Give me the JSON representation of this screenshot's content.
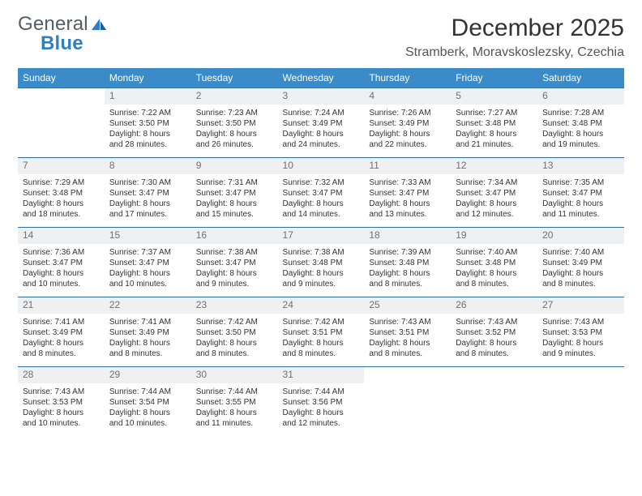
{
  "logo": {
    "text_general": "General",
    "text_blue": "Blue"
  },
  "title": "December 2025",
  "location": "Stramberk, Moravskoslezsky, Czechia",
  "colors": {
    "header_bg": "#3b8bc8",
    "header_text": "#ffffff",
    "daynum_bg": "#eef0f1",
    "daynum_text": "#707070",
    "cell_border": "#2f6fa3",
    "logo_gray": "#555d66",
    "logo_blue": "#2f7fc1"
  },
  "day_headers": [
    "Sunday",
    "Monday",
    "Tuesday",
    "Wednesday",
    "Thursday",
    "Friday",
    "Saturday"
  ],
  "weeks": [
    [
      {
        "n": "",
        "lines": []
      },
      {
        "n": "1",
        "lines": [
          "Sunrise: 7:22 AM",
          "Sunset: 3:50 PM",
          "Daylight: 8 hours",
          "and 28 minutes."
        ]
      },
      {
        "n": "2",
        "lines": [
          "Sunrise: 7:23 AM",
          "Sunset: 3:50 PM",
          "Daylight: 8 hours",
          "and 26 minutes."
        ]
      },
      {
        "n": "3",
        "lines": [
          "Sunrise: 7:24 AM",
          "Sunset: 3:49 PM",
          "Daylight: 8 hours",
          "and 24 minutes."
        ]
      },
      {
        "n": "4",
        "lines": [
          "Sunrise: 7:26 AM",
          "Sunset: 3:49 PM",
          "Daylight: 8 hours",
          "and 22 minutes."
        ]
      },
      {
        "n": "5",
        "lines": [
          "Sunrise: 7:27 AM",
          "Sunset: 3:48 PM",
          "Daylight: 8 hours",
          "and 21 minutes."
        ]
      },
      {
        "n": "6",
        "lines": [
          "Sunrise: 7:28 AM",
          "Sunset: 3:48 PM",
          "Daylight: 8 hours",
          "and 19 minutes."
        ]
      }
    ],
    [
      {
        "n": "7",
        "lines": [
          "Sunrise: 7:29 AM",
          "Sunset: 3:48 PM",
          "Daylight: 8 hours",
          "and 18 minutes."
        ]
      },
      {
        "n": "8",
        "lines": [
          "Sunrise: 7:30 AM",
          "Sunset: 3:47 PM",
          "Daylight: 8 hours",
          "and 17 minutes."
        ]
      },
      {
        "n": "9",
        "lines": [
          "Sunrise: 7:31 AM",
          "Sunset: 3:47 PM",
          "Daylight: 8 hours",
          "and 15 minutes."
        ]
      },
      {
        "n": "10",
        "lines": [
          "Sunrise: 7:32 AM",
          "Sunset: 3:47 PM",
          "Daylight: 8 hours",
          "and 14 minutes."
        ]
      },
      {
        "n": "11",
        "lines": [
          "Sunrise: 7:33 AM",
          "Sunset: 3:47 PM",
          "Daylight: 8 hours",
          "and 13 minutes."
        ]
      },
      {
        "n": "12",
        "lines": [
          "Sunrise: 7:34 AM",
          "Sunset: 3:47 PM",
          "Daylight: 8 hours",
          "and 12 minutes."
        ]
      },
      {
        "n": "13",
        "lines": [
          "Sunrise: 7:35 AM",
          "Sunset: 3:47 PM",
          "Daylight: 8 hours",
          "and 11 minutes."
        ]
      }
    ],
    [
      {
        "n": "14",
        "lines": [
          "Sunrise: 7:36 AM",
          "Sunset: 3:47 PM",
          "Daylight: 8 hours",
          "and 10 minutes."
        ]
      },
      {
        "n": "15",
        "lines": [
          "Sunrise: 7:37 AM",
          "Sunset: 3:47 PM",
          "Daylight: 8 hours",
          "and 10 minutes."
        ]
      },
      {
        "n": "16",
        "lines": [
          "Sunrise: 7:38 AM",
          "Sunset: 3:47 PM",
          "Daylight: 8 hours",
          "and 9 minutes."
        ]
      },
      {
        "n": "17",
        "lines": [
          "Sunrise: 7:38 AM",
          "Sunset: 3:48 PM",
          "Daylight: 8 hours",
          "and 9 minutes."
        ]
      },
      {
        "n": "18",
        "lines": [
          "Sunrise: 7:39 AM",
          "Sunset: 3:48 PM",
          "Daylight: 8 hours",
          "and 8 minutes."
        ]
      },
      {
        "n": "19",
        "lines": [
          "Sunrise: 7:40 AM",
          "Sunset: 3:48 PM",
          "Daylight: 8 hours",
          "and 8 minutes."
        ]
      },
      {
        "n": "20",
        "lines": [
          "Sunrise: 7:40 AM",
          "Sunset: 3:49 PM",
          "Daylight: 8 hours",
          "and 8 minutes."
        ]
      }
    ],
    [
      {
        "n": "21",
        "lines": [
          "Sunrise: 7:41 AM",
          "Sunset: 3:49 PM",
          "Daylight: 8 hours",
          "and 8 minutes."
        ]
      },
      {
        "n": "22",
        "lines": [
          "Sunrise: 7:41 AM",
          "Sunset: 3:49 PM",
          "Daylight: 8 hours",
          "and 8 minutes."
        ]
      },
      {
        "n": "23",
        "lines": [
          "Sunrise: 7:42 AM",
          "Sunset: 3:50 PM",
          "Daylight: 8 hours",
          "and 8 minutes."
        ]
      },
      {
        "n": "24",
        "lines": [
          "Sunrise: 7:42 AM",
          "Sunset: 3:51 PM",
          "Daylight: 8 hours",
          "and 8 minutes."
        ]
      },
      {
        "n": "25",
        "lines": [
          "Sunrise: 7:43 AM",
          "Sunset: 3:51 PM",
          "Daylight: 8 hours",
          "and 8 minutes."
        ]
      },
      {
        "n": "26",
        "lines": [
          "Sunrise: 7:43 AM",
          "Sunset: 3:52 PM",
          "Daylight: 8 hours",
          "and 8 minutes."
        ]
      },
      {
        "n": "27",
        "lines": [
          "Sunrise: 7:43 AM",
          "Sunset: 3:53 PM",
          "Daylight: 8 hours",
          "and 9 minutes."
        ]
      }
    ],
    [
      {
        "n": "28",
        "lines": [
          "Sunrise: 7:43 AM",
          "Sunset: 3:53 PM",
          "Daylight: 8 hours",
          "and 10 minutes."
        ]
      },
      {
        "n": "29",
        "lines": [
          "Sunrise: 7:44 AM",
          "Sunset: 3:54 PM",
          "Daylight: 8 hours",
          "and 10 minutes."
        ]
      },
      {
        "n": "30",
        "lines": [
          "Sunrise: 7:44 AM",
          "Sunset: 3:55 PM",
          "Daylight: 8 hours",
          "and 11 minutes."
        ]
      },
      {
        "n": "31",
        "lines": [
          "Sunrise: 7:44 AM",
          "Sunset: 3:56 PM",
          "Daylight: 8 hours",
          "and 12 minutes."
        ]
      },
      {
        "n": "",
        "lines": []
      },
      {
        "n": "",
        "lines": []
      },
      {
        "n": "",
        "lines": []
      }
    ]
  ]
}
